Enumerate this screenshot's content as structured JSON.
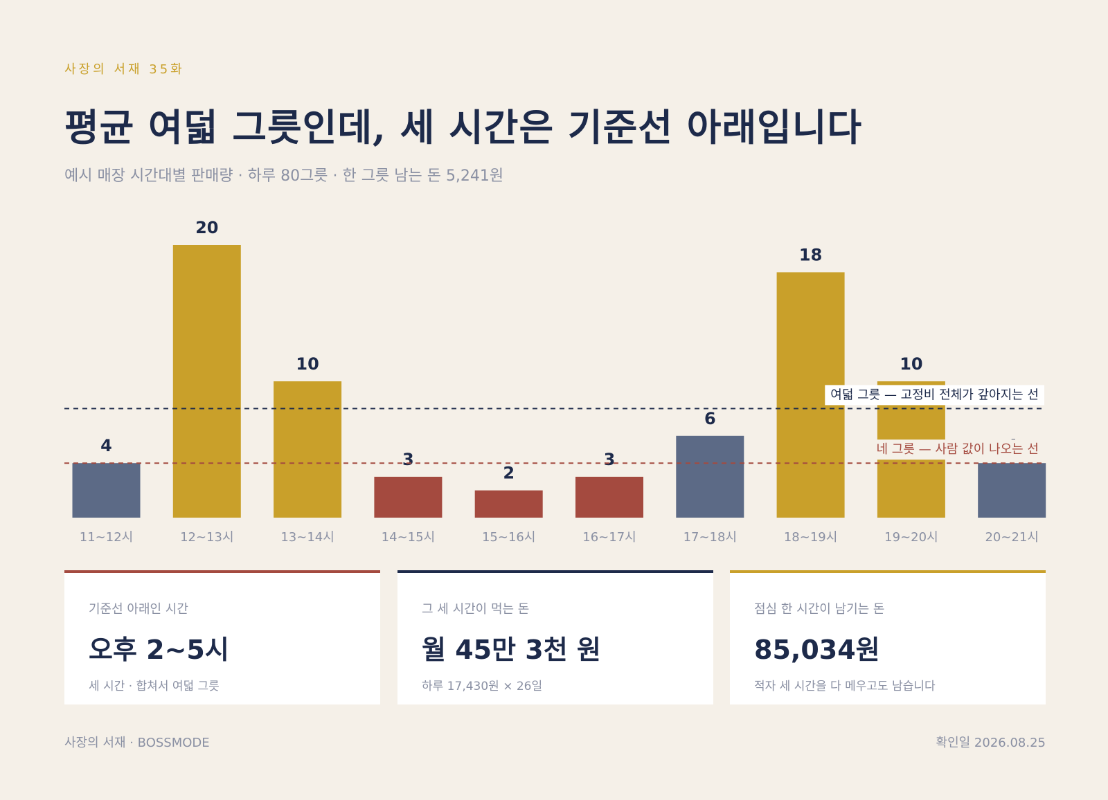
{
  "header": {
    "kicker": "사장의 서재 35화",
    "title": "평균 여덟 그릇인데, 세 시간은 기준선 아래입니다",
    "subtitle": "예시 매장 시간대별 판매량 · 하루 80그릇 · 한 그릇 남는 돈 5,241원"
  },
  "chart_data": {
    "type": "bar",
    "categories": [
      "11~12시",
      "12~13시",
      "13~14시",
      "14~15시",
      "15~16시",
      "16~17시",
      "17~18시",
      "18~19시",
      "19~20시",
      "20~21시"
    ],
    "values": [
      4,
      20,
      10,
      3,
      2,
      3,
      6,
      18,
      10,
      4
    ],
    "bar_colors": [
      "#5c6a86",
      "#c9a02a",
      "#c9a02a",
      "#a44a3f",
      "#a44a3f",
      "#a44a3f",
      "#5c6a86",
      "#c9a02a",
      "#c9a02a",
      "#5c6a86"
    ],
    "ylim": [
      0,
      20
    ],
    "reference_lines": [
      {
        "value": 8,
        "label": "여덟 그릇 — 고정비 전체가 갚아지는 선",
        "color": "#1d2a4a"
      },
      {
        "value": 4,
        "label": "네 그릇 — 사람 값이 나오는 선",
        "color": "#a44a3f"
      }
    ]
  },
  "cards": [
    {
      "label": "기준선 아래인 시간",
      "value": "오후 2~5시",
      "note": "세 시간 · 합쳐서 여덟 그릇",
      "accent": "#a44a3f"
    },
    {
      "label": "그 세 시간이 먹는 돈",
      "value": "월 45만 3천 원",
      "note": "하루 17,430원 × 26일",
      "accent": "#1d2a4a"
    },
    {
      "label": "점심 한 시간이 남기는 돈",
      "value": "85,034원",
      "note": "적자 세 시간을 다 메우고도 남습니다",
      "accent": "#c9a02a"
    }
  ],
  "footer": {
    "left": "사장의 서재 · BOSSMODE",
    "right": "확인일 2026.08.25"
  }
}
